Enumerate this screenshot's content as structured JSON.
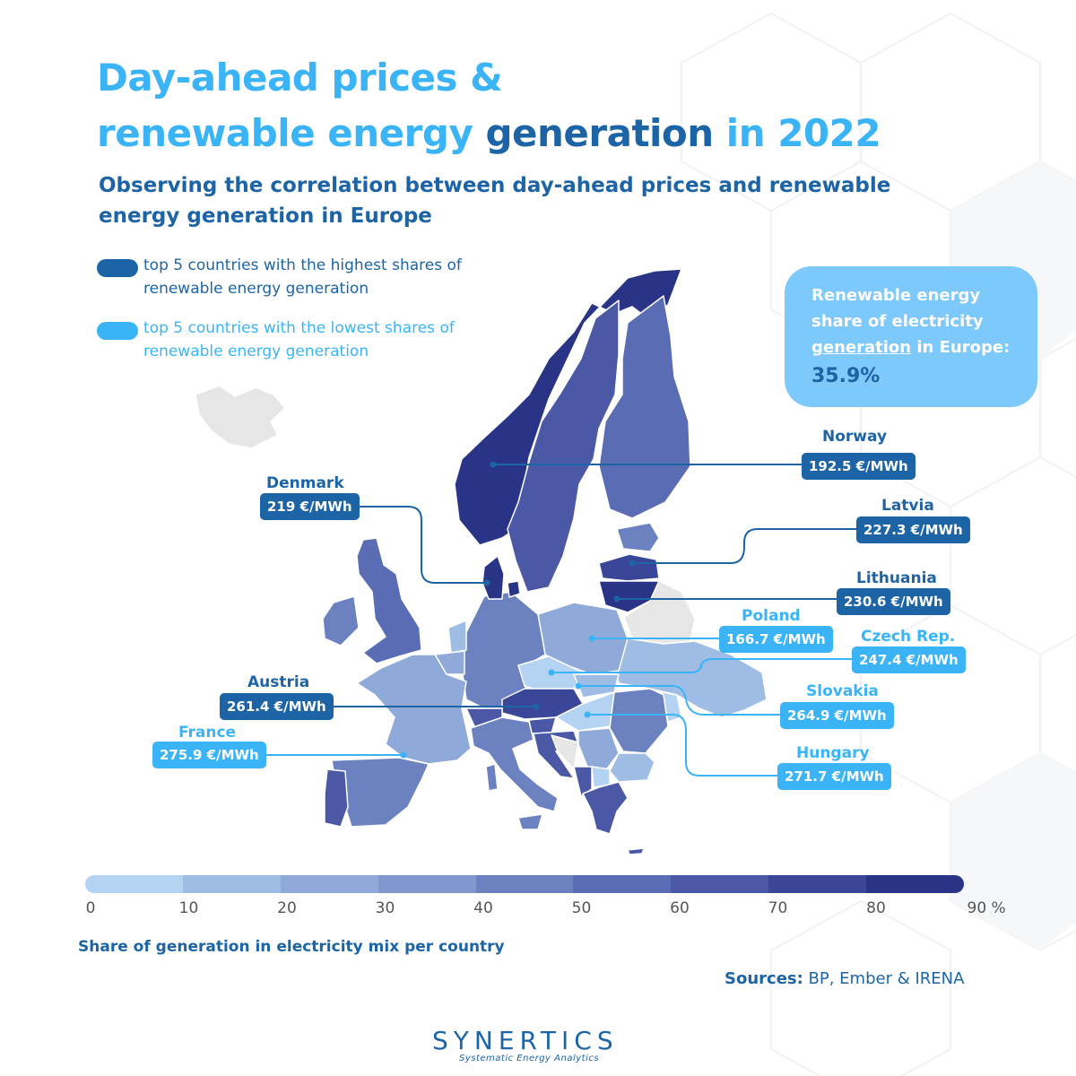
{
  "title": {
    "line1": "Day-ahead prices &",
    "line2_a": "renewable energy ",
    "line2_b": "generation",
    "line2_c": " in 2022"
  },
  "subtitle": "Observing the correlation between day-ahead prices and renewable energy generation in Europe",
  "legend": {
    "high": "top 5 countries with the highest shares of renewable energy generation",
    "low": "top 5 countries with the lowest shares of renewable energy generation"
  },
  "info_box": {
    "line1": "Renewable energy",
    "line2": "share of electricity",
    "line3_a": "generation",
    "line3_b": " in Europe:",
    "value": "35.9%"
  },
  "countries": [
    {
      "name": "Norway",
      "price": "192.5 €/MWh",
      "group": "high"
    },
    {
      "name": "Latvia",
      "price": "227.3 €/MWh",
      "group": "high"
    },
    {
      "name": "Lithuania",
      "price": "230.6 €/MWh",
      "group": "high"
    },
    {
      "name": "Denmark",
      "price": "219 €/MWh",
      "group": "high"
    },
    {
      "name": "Austria",
      "price": "261.4 €/MWh",
      "group": "high"
    },
    {
      "name": "Poland",
      "price": "166.7 €/MWh",
      "group": "low"
    },
    {
      "name": "Czech Rep.",
      "price": "247.4 €/MWh",
      "group": "low"
    },
    {
      "name": "Slovakia",
      "price": "264.9 €/MWh",
      "group": "low"
    },
    {
      "name": "Hungary",
      "price": "271.7 €/MWh",
      "group": "low"
    },
    {
      "name": "France",
      "price": "275.9 €/MWh",
      "group": "low"
    }
  ],
  "scale": {
    "ticks": [
      "0",
      "10",
      "20",
      "30",
      "40",
      "50",
      "60",
      "70",
      "80",
      "90 %"
    ],
    "colors": [
      "#b4d2f1",
      "#9fbde4",
      "#8faad8",
      "#7f97cd",
      "#6c82c0",
      "#5a6cb3",
      "#4a58a5",
      "#3a4697",
      "#2a3486"
    ],
    "caption": "Share of generation in electricity mix per country"
  },
  "sources": {
    "label": "Sources:",
    "text": " BP, Ember & IRENA"
  },
  "brand": {
    "name": "SYNERTICS",
    "tagline": "Systematic Energy Analytics"
  },
  "colors": {
    "accent_dark": "#1d64a6",
    "accent_light": "#3bb4f7",
    "info_box": "#7ec9fb"
  }
}
